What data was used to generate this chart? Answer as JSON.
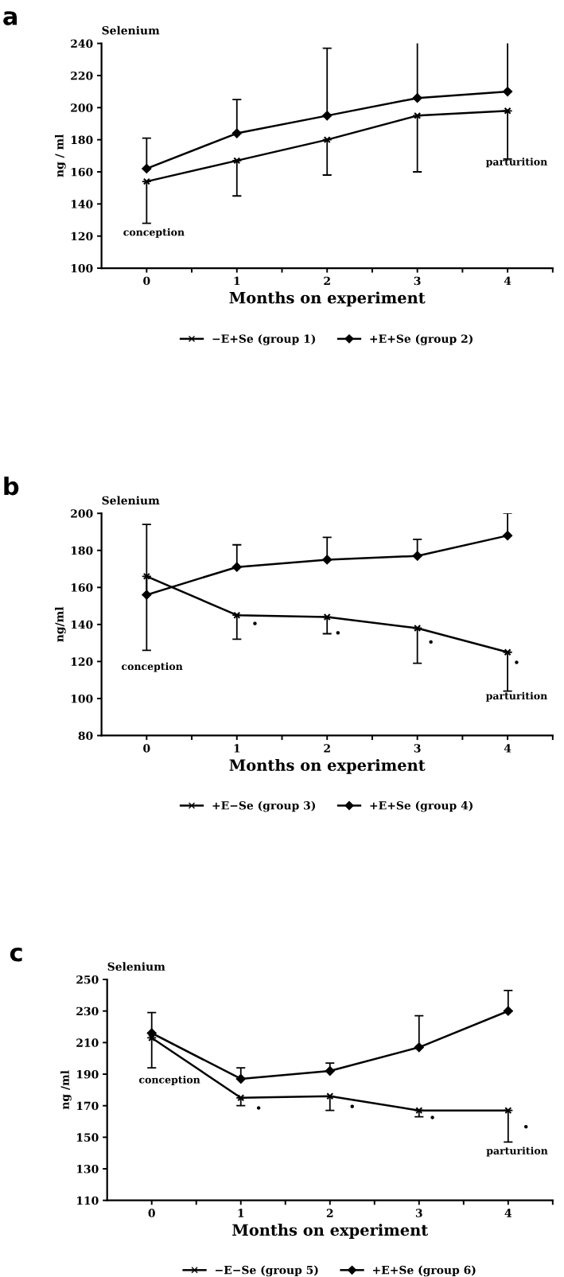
{
  "chart_data": [
    {
      "type": "line",
      "title": "a",
      "subtitle": "Selenium",
      "ylabel": "ng / ml",
      "xlabel": "Months on experiment",
      "x": [
        0,
        1,
        2,
        3,
        4
      ],
      "xlim": [
        -0.5,
        4.5
      ],
      "xticks": [
        0,
        {
          "value": 0.5,
          "label": null
        },
        1,
        {
          "value": 1.5,
          "label": null
        },
        2,
        {
          "value": 2.5,
          "label": null
        },
        3,
        {
          "value": 3.5,
          "label": null
        },
        4,
        {
          "value": 4.5,
          "label": null
        }
      ],
      "ylim": [
        100,
        240
      ],
      "yticks": [
        100,
        120,
        140,
        160,
        180,
        200,
        220,
        240
      ],
      "legend": "bottom",
      "grid": false,
      "series": [
        {
          "name": "−E+Se (group 1)",
          "color": "#000000",
          "marker": "cross",
          "values": [
            154,
            167,
            180,
            195,
            198
          ],
          "errors": [
            [
              128,
              154
            ],
            [
              145,
              167
            ],
            [
              158,
              180
            ],
            [
              160,
              195
            ],
            [
              168,
              198
            ]
          ]
        },
        {
          "name": "+E+Se (group 2)",
          "color": "#000000",
          "marker": "diamond",
          "values": [
            162,
            184,
            195,
            206,
            210
          ],
          "errors": [
            [
              162,
              181
            ],
            [
              184,
              205
            ],
            [
              195,
              237
            ],
            [
              206,
              241
            ],
            [
              210,
              241
            ]
          ]
        }
      ],
      "annotations": [
        "conception",
        "parturition"
      ]
    },
    {
      "type": "line",
      "title": "b",
      "subtitle": "Selenium",
      "ylabel": "ng/ml",
      "xlabel": "Months on experiment",
      "x": [
        0,
        1,
        2,
        3,
        4
      ],
      "xlim": [
        -0.5,
        4.5
      ],
      "xticks": [
        0,
        {
          "value": 0.5,
          "label": null
        },
        1,
        {
          "value": 1.5,
          "label": null
        },
        2,
        {
          "value": 2.5,
          "label": null
        },
        3,
        {
          "value": 3.5,
          "label": null
        },
        4,
        {
          "value": 4.5,
          "label": null
        }
      ],
      "ylim": [
        80,
        200
      ],
      "yticks": [
        80,
        100,
        120,
        140,
        160,
        180,
        200
      ],
      "legend": "bottom",
      "grid": false,
      "series": [
        {
          "name": "+E−Se (group 3)",
          "color": "#000000",
          "marker": "cross",
          "values": [
            166,
            145,
            144,
            138,
            125
          ],
          "errors": [
            [
              126,
              166
            ],
            [
              132,
              145
            ],
            [
              135,
              144
            ],
            [
              119,
              138
            ],
            [
              104,
              125
            ]
          ]
        },
        {
          "name": "+E+Se (group 4)",
          "color": "#000000",
          "marker": "diamond",
          "values": [
            156,
            171,
            175,
            177,
            188
          ],
          "errors": [
            [
              156,
              194
            ],
            [
              171,
              183
            ],
            [
              175,
              187
            ],
            [
              177,
              186
            ],
            [
              188,
              200
            ]
          ]
        }
      ],
      "annotations": [
        "conception",
        "parturition",
        "•",
        "•",
        "•",
        "•"
      ]
    },
    {
      "type": "line",
      "title": "c",
      "subtitle": "Selenium",
      "ylabel": "ng /ml",
      "xlabel": "Months on experiment",
      "x": [
        0,
        1,
        2,
        3,
        4
      ],
      "xlim": [
        -0.5,
        4.5
      ],
      "xticks": [
        0,
        {
          "value": 0.5,
          "label": null
        },
        1,
        {
          "value": 1.5,
          "label": null
        },
        2,
        {
          "value": 2.5,
          "label": null
        },
        3,
        {
          "value": 3.5,
          "label": null
        },
        4,
        {
          "value": 4.5,
          "label": null
        }
      ],
      "ylim": [
        110,
        250
      ],
      "yticks": [
        110,
        130,
        150,
        170,
        190,
        210,
        230,
        250
      ],
      "legend": "bottom",
      "grid": false,
      "series": [
        {
          "name": "−E−Se (group 5)",
          "color": "#000000",
          "marker": "cross",
          "values": [
            213,
            175,
            176,
            167,
            167
          ],
          "errors": [
            [
              194,
              213
            ],
            [
              170,
              175
            ],
            [
              167,
              176
            ],
            [
              163,
              167
            ],
            [
              147,
              167
            ]
          ]
        },
        {
          "name": "+E+Se (group 6)",
          "color": "#000000",
          "marker": "diamond",
          "values": [
            216,
            187,
            192,
            207,
            230
          ],
          "errors": [
            [
              216,
              229
            ],
            [
              187,
              194
            ],
            [
              192,
              197
            ],
            [
              207,
              227
            ],
            [
              230,
              243
            ]
          ]
        }
      ],
      "annotations": [
        "conception",
        "parturition",
        "•",
        "•",
        "•",
        "•"
      ]
    }
  ]
}
